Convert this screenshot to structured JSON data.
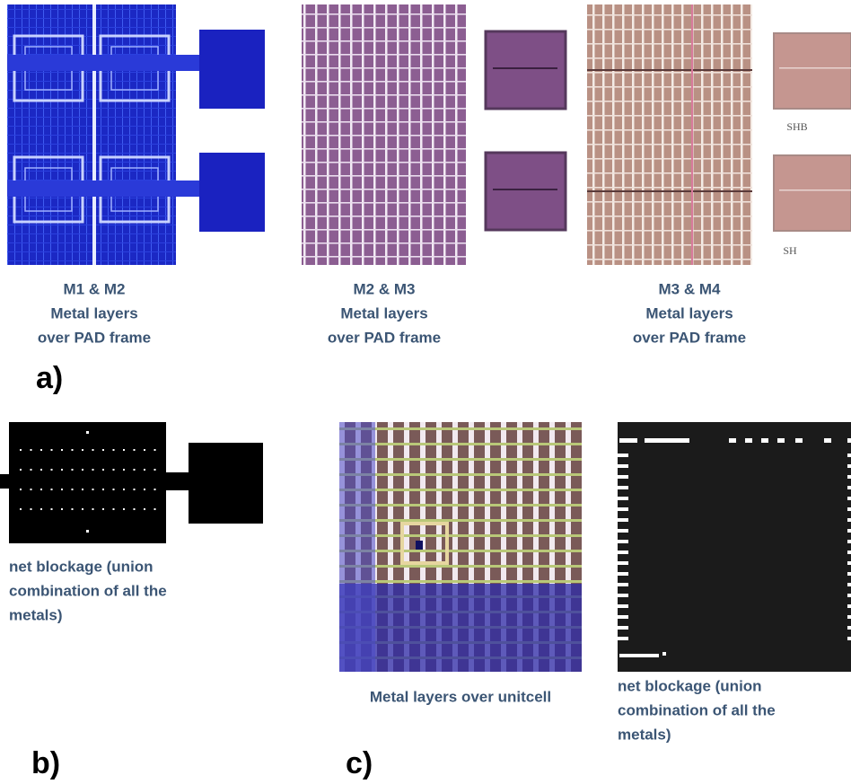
{
  "panel_a": {
    "label": "a)",
    "items": [
      {
        "caption": [
          "M1 & M2",
          "Metal layers",
          "over PAD frame"
        ]
      },
      {
        "caption": [
          "M2 & M3",
          "Metal layers",
          "over PAD frame"
        ]
      },
      {
        "caption": [
          "M3 & M4",
          "Metal layers",
          "over PAD frame"
        ]
      }
    ],
    "pad_labels": [
      "SHB",
      "SH"
    ]
  },
  "panel_b": {
    "label": "b)",
    "caption": [
      "net blockage (union",
      "combination of all the",
      "metals)"
    ]
  },
  "panel_c": {
    "label": "c)",
    "unitcell_caption": "Metal layers over unitcell",
    "blockage_caption": [
      "net blockage (union",
      "combination of all the",
      "metals)"
    ]
  }
}
